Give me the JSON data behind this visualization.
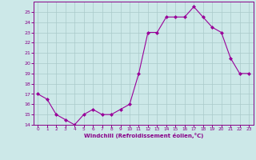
{
  "x": [
    0,
    1,
    2,
    3,
    4,
    5,
    6,
    7,
    8,
    9,
    10,
    11,
    12,
    13,
    14,
    15,
    16,
    17,
    18,
    19,
    20,
    21,
    22,
    23
  ],
  "y": [
    17.0,
    16.5,
    15.0,
    14.5,
    14.0,
    15.0,
    15.5,
    15.0,
    15.0,
    15.5,
    16.0,
    19.0,
    23.0,
    23.0,
    24.5,
    24.5,
    24.5,
    25.5,
    24.5,
    23.5,
    23.0,
    20.5,
    19.0,
    19.0
  ],
  "line_color": "#990099",
  "marker": "D",
  "markersize": 2,
  "linewidth": 0.8,
  "xlabel": "Windchill (Refroidissement éolien,°C)",
  "xlim": [
    -0.5,
    23.5
  ],
  "ylim": [
    14,
    26
  ],
  "yticks": [
    14,
    15,
    16,
    17,
    18,
    19,
    20,
    21,
    22,
    23,
    24,
    25
  ],
  "xticks": [
    0,
    1,
    2,
    3,
    4,
    5,
    6,
    7,
    8,
    9,
    10,
    11,
    12,
    13,
    14,
    15,
    16,
    17,
    18,
    19,
    20,
    21,
    22,
    23
  ],
  "bg_color": "#cce8e8",
  "grid_color": "#aacaca",
  "tick_color": "#880088",
  "label_color": "#880088"
}
